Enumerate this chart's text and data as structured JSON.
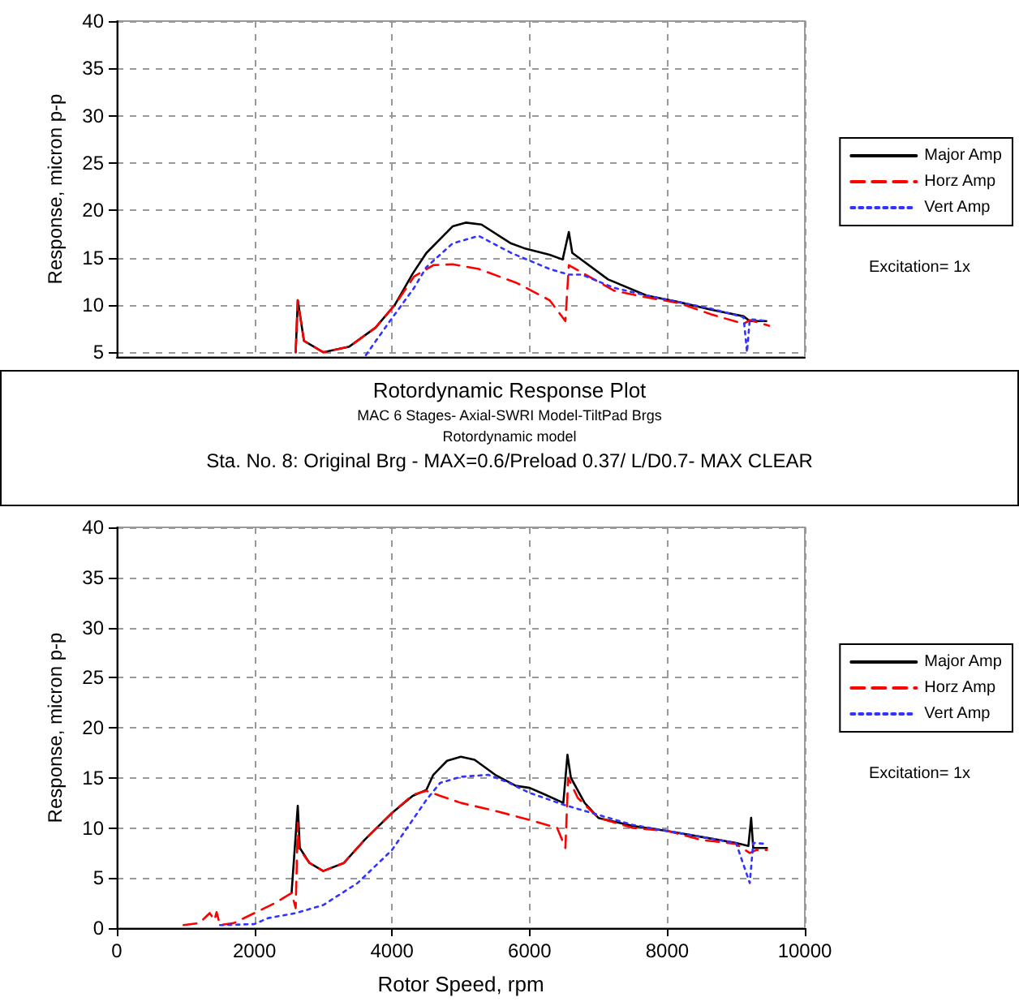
{
  "chart_data": [
    {
      "type": "line",
      "ylabel": "Response, micron p-p",
      "xlim": [
        0,
        10000
      ],
      "xticks": [
        0,
        2000,
        4000,
        6000,
        8000,
        10000
      ],
      "ylim": [
        4.5,
        40
      ],
      "yticks": [
        5,
        10,
        15,
        20,
        25,
        30,
        35,
        40
      ],
      "tick_labels": "y",
      "grid": true,
      "legend": "right",
      "marker": "none",
      "annotations": [
        "Excitation= 1x"
      ],
      "series": [
        {
          "name": "Major Amp",
          "color": "#000000",
          "line_style": "solid",
          "x": [
            2600,
            2630,
            2720,
            3000,
            3380,
            3760,
            4040,
            4300,
            4500,
            4880,
            5070,
            5300,
            5730,
            5920,
            6290,
            6480,
            6570,
            6620,
            7140,
            7700,
            8170,
            8640,
            9110,
            9200,
            9440
          ],
          "values": [
            5,
            10.5,
            6.2,
            5,
            5.6,
            7.6,
            10,
            13.3,
            15.5,
            18.3,
            18.7,
            18.5,
            16.5,
            16,
            15.3,
            14.8,
            17.7,
            15.5,
            12.7,
            11,
            10.3,
            9.5,
            8.8,
            8.3,
            8.3
          ]
        },
        {
          "name": "Horz Amp",
          "color": "#ff0000",
          "line_style": "dashed",
          "x": [
            2600,
            2630,
            2720,
            3000,
            3380,
            3760,
            4040,
            4320,
            4600,
            4880,
            5260,
            5820,
            6290,
            6520,
            6570,
            6670,
            7230,
            7700,
            8170,
            8640,
            9110,
            9200,
            9480
          ],
          "values": [
            5,
            10.5,
            6.2,
            5,
            5.6,
            7.6,
            10,
            13,
            14.2,
            14.3,
            13.8,
            12.3,
            10.5,
            8.3,
            14.2,
            13.8,
            11.5,
            10.8,
            10.2,
            9,
            8,
            8.4,
            7.8
          ]
        },
        {
          "name": "Vert Amp",
          "color": "#3333ff",
          "line_style": "dotted",
          "x": [
            3620,
            3940,
            4320,
            4500,
            4880,
            5260,
            5730,
            6290,
            6570,
            6760,
            7230,
            7700,
            8170,
            8640,
            9110,
            9160,
            9200,
            9440
          ],
          "values": [
            4.7,
            8,
            11.8,
            14,
            16.5,
            17.3,
            15.5,
            13.8,
            13.2,
            13.2,
            11.8,
            11,
            10.3,
            9.6,
            8.7,
            5,
            8.5,
            8.3
          ]
        }
      ]
    },
    {
      "type": "other",
      "title": "Rotordynamic Response Plot",
      "annotations": [
        "MAC 6 Stages- Axial-SWRI Model-TiltPad Brgs",
        "Rotordynamic model",
        "Sta. No. 8: Original Brg - MAX=0.6/Preload 0.37/ L/D0.7- MAX CLEAR"
      ]
    },
    {
      "type": "line",
      "xlabel": "Rotor Speed, rpm",
      "ylabel": "Response, micron p-p",
      "xlim": [
        0,
        10000
      ],
      "xticks": [
        0,
        2000,
        4000,
        6000,
        8000,
        10000
      ],
      "ylim": [
        0,
        40
      ],
      "yticks": [
        0,
        5,
        10,
        15,
        20,
        25,
        30,
        35,
        40
      ],
      "grid": true,
      "legend": "right",
      "marker": "none",
      "annotations": [
        "Excitation= 1x"
      ],
      "series": [
        {
          "name": "Major Amp",
          "color": "#000000",
          "line_style": "solid",
          "x": [
            2540,
            2630,
            2660,
            2800,
            3000,
            3300,
            3600,
            4000,
            4300,
            4500,
            4600,
            4800,
            5000,
            5200,
            5500,
            5800,
            6000,
            6200,
            6490,
            6550,
            6600,
            6800,
            7000,
            7500,
            8000,
            8500,
            9000,
            9180,
            9220,
            9250,
            9450
          ],
          "values": [
            3.5,
            12.2,
            8,
            6.5,
            5.7,
            6.5,
            8.8,
            11.5,
            13.2,
            13.8,
            15.3,
            16.7,
            17.1,
            16.8,
            15.3,
            14.2,
            14,
            13.4,
            12.5,
            17.3,
            15,
            12.5,
            11,
            10.2,
            9.7,
            9.1,
            8.5,
            8.2,
            11,
            8,
            8
          ]
        },
        {
          "name": "Horz Amp",
          "color": "#ff0000",
          "line_style": "dashed",
          "x": [
            970,
            1200,
            1350,
            1420,
            1450,
            1500,
            1700,
            2000,
            2300,
            2540,
            2600,
            2630,
            2640,
            2800,
            3000,
            3300,
            3600,
            4000,
            4300,
            4500,
            4700,
            5000,
            5500,
            6000,
            6400,
            6520,
            6560,
            6700,
            7000,
            7500,
            8000,
            8500,
            9000,
            9200,
            9300,
            9450
          ],
          "values": [
            0.3,
            0.5,
            1.5,
            0.8,
            1.6,
            0.3,
            0.5,
            1.5,
            2.5,
            3.5,
            2,
            10.5,
            8,
            6.5,
            5.7,
            6.5,
            8.8,
            11.5,
            13.3,
            13.7,
            13.2,
            12.5,
            11.7,
            10.8,
            10,
            8,
            15,
            13,
            11,
            10,
            9.7,
            8.8,
            8.4,
            7.5,
            7.8,
            7.8
          ]
        },
        {
          "name": "Vert Amp",
          "color": "#3333ff",
          "line_style": "dotted",
          "x": [
            1500,
            2000,
            2200,
            2600,
            3000,
            3500,
            4000,
            4500,
            4700,
            5000,
            5400,
            5700,
            6000,
            6500,
            7000,
            7500,
            8000,
            8500,
            9000,
            9200,
            9250,
            9450
          ],
          "values": [
            0.3,
            0.4,
            1,
            1.5,
            2.3,
            4.5,
            7.8,
            12.8,
            14.5,
            15.1,
            15.3,
            14.5,
            13.5,
            12.3,
            11.3,
            10.3,
            9.7,
            9.1,
            8.5,
            4.5,
            8.5,
            8.4
          ]
        }
      ]
    }
  ]
}
